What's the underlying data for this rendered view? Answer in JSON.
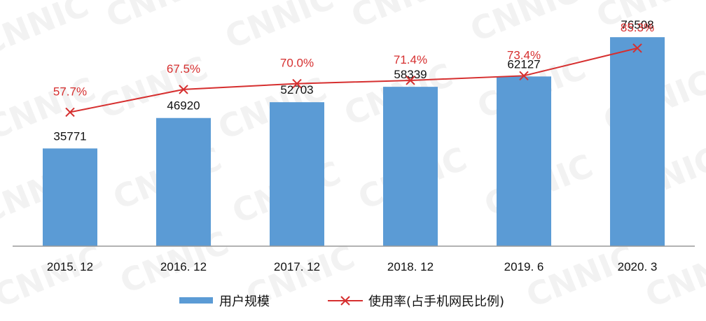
{
  "watermark": "CNNIC",
  "colors": {
    "bar": "#5b9bd5",
    "line": "#d62f2f",
    "axis": "#999999"
  },
  "chart_data": {
    "type": "bar",
    "categories": [
      "2015. 12",
      "2016. 12",
      "2017. 12",
      "2018. 12",
      "2019. 6",
      "2020. 3"
    ],
    "series": [
      {
        "name": "用户规模",
        "type": "bar",
        "values": [
          35771,
          46920,
          52703,
          58339,
          62127,
          76508
        ],
        "labels": [
          "35771",
          "46920",
          "52703",
          "58339",
          "62127",
          "76508"
        ]
      },
      {
        "name": "使用率(占手机网民比例)",
        "type": "line",
        "values": [
          57.7,
          67.5,
          70.0,
          71.4,
          73.4,
          85.3
        ],
        "labels": [
          "57.7%",
          "67.5%",
          "70.0%",
          "71.4%",
          "73.4%",
          "85.3%"
        ]
      }
    ],
    "ylim": [
      0,
      85000
    ],
    "y2lim": [
      0,
      100
    ],
    "legend": "bottom",
    "grid": false
  }
}
